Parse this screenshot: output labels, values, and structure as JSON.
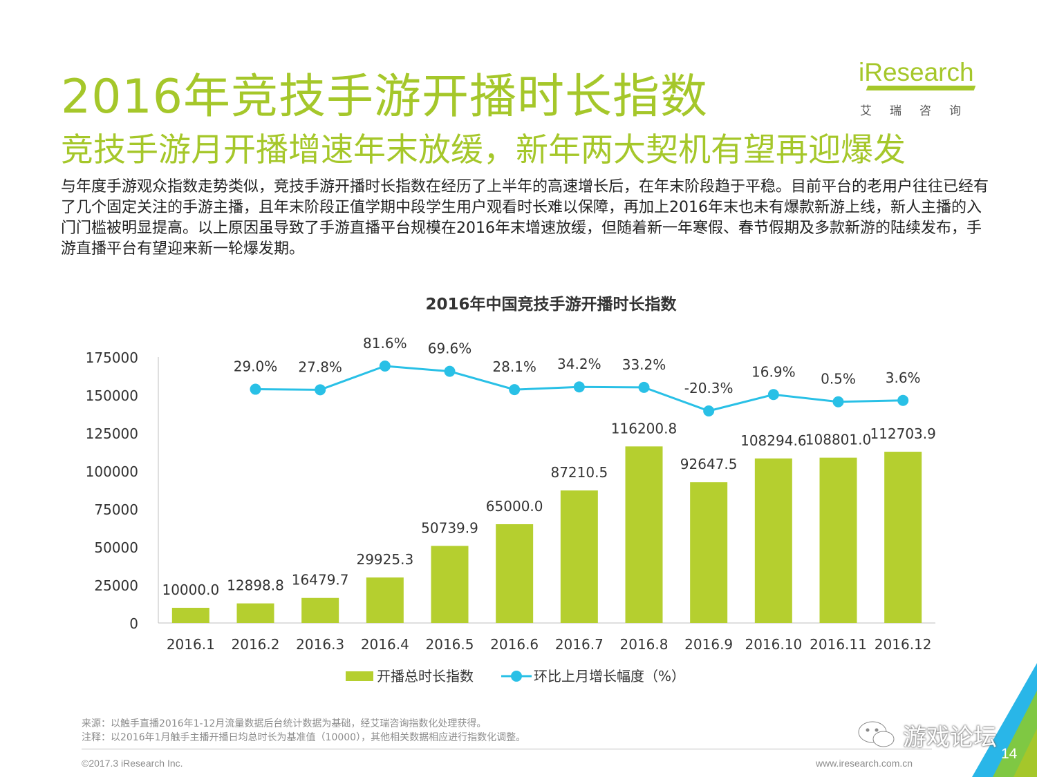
{
  "header": {
    "title": "2016年竞技手游开播时长指数",
    "subtitle": "竞技手游月开播增速年末放缓，新年两大契机有望再迎爆发",
    "paragraph": "与年度手游观众指数走势类似，竞技手游开播时长指数在经历了上半年的高速增长后，在年末阶段趋于平稳。目前平台的老用户往往已经有了几个固定关注的手游主播，且年末阶段正值学期中段学生用户观看时长难以保障，再加上2016年末也未有爆款新游上线，新人主播的入门门槛被明显提高。以上原因虽导致了手游直播平台规模在2016年末增速放缓，但随着新一年寒假、春节假期及多款新游的陆续发布，手游直播平台有望迎来新一轮爆发期。"
  },
  "logo": {
    "brand": "iResearch",
    "chinese": "艾瑞咨询"
  },
  "colors": {
    "accent": "#a5c72a",
    "bar": "#b5cf2f",
    "line": "#29c0e6"
  },
  "chart_data": {
    "type": "bar",
    "title": "2016年中国竞技手游开播时长指数",
    "categories": [
      "2016.1",
      "2016.2",
      "2016.3",
      "2016.4",
      "2016.5",
      "2016.6",
      "2016.7",
      "2016.8",
      "2016.9",
      "2016.10",
      "2016.11",
      "2016.12"
    ],
    "series": [
      {
        "name": "开播总时长指数",
        "kind": "bar",
        "values": [
          10000.0,
          12898.8,
          16479.7,
          29925.3,
          50739.9,
          65000.0,
          87210.5,
          116200.8,
          92647.5,
          108294.6,
          108801.0,
          112703.9
        ],
        "labels": [
          "10000.0",
          "12898.8",
          "16479.7",
          "29925.3",
          "50739.9",
          "65000.0",
          "87210.5",
          "116200.8",
          "92647.5",
          "108294.6",
          "108801.0",
          "112703.9"
        ]
      },
      {
        "name": "环比上月增长幅度（%）",
        "kind": "line",
        "values": [
          null,
          29.0,
          27.8,
          81.6,
          69.6,
          28.1,
          34.2,
          33.2,
          -20.3,
          16.9,
          0.5,
          3.6
        ],
        "labels": [
          "",
          "29.0%",
          "27.8%",
          "81.6%",
          "69.6%",
          "28.1%",
          "34.2%",
          "33.2%",
          "-20.3%",
          "16.9%",
          "0.5%",
          "3.6%"
        ]
      }
    ],
    "ylim": [
      0,
      175000
    ],
    "yticks": [
      "0",
      "25000",
      "50000",
      "75000",
      "100000",
      "125000",
      "150000",
      "175000"
    ],
    "legend_position": "bottom",
    "grid": false
  },
  "footer": {
    "source": "来源：以触手直播2016年1-12月流量数据后台统计数据为基础，经艾瑞咨询指数化处理获得。",
    "note": "注释：以2016年1月触手主播开播日均总时长为基准值（10000），其他相关数据相应进行指数化调整。",
    "copyright": "©2017.3 iResearch Inc.",
    "website": "www.iresearch.com.cn",
    "page_number": "14",
    "watermark": "游戏论坛"
  }
}
